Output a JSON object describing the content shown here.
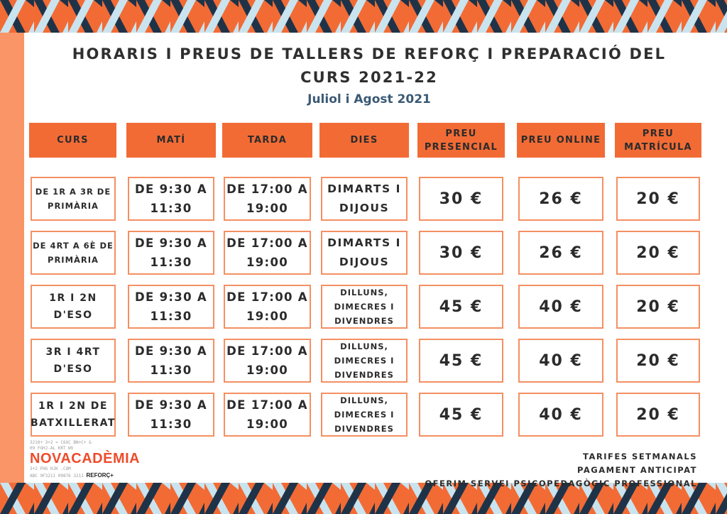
{
  "title_line1": "HORARIS I PREUS DE TALLERS DE REFORÇ I PREPARACIÓ DEL",
  "title_line2": "CURS 2021-22",
  "subtitle": "Juliol i Agost 2021",
  "headers": {
    "curs": "CURS",
    "mati": "MATÍ",
    "tarda": "TARDA",
    "dies": "DIES",
    "preu_presencial_1": "PREU",
    "preu_presencial_2": "PRESENCIAL",
    "preu_online": "PREU ONLINE",
    "preu_matricula_1": "PREU",
    "preu_matricula_2": "MATRÍCULA"
  },
  "rows": [
    {
      "curs_1": "DE 1R A 3R DE",
      "curs_2": "PRIMÀRIA",
      "mati_1": "DE 9:30 A",
      "mati_2": "11:30",
      "tarda_1": "DE 17:00 A",
      "tarda_2": "19:00",
      "dies_1": "DIMARTS I",
      "dies_2": "DIJOUS",
      "dies_3": "",
      "presencial": "30 €",
      "online": "26 €",
      "matricula": "20 €"
    },
    {
      "curs_1": "DE 4RT A 6È DE",
      "curs_2": "PRIMÀRIA",
      "mati_1": "DE 9:30 A",
      "mati_2": "11:30",
      "tarda_1": "DE 17:00 A",
      "tarda_2": "19:00",
      "dies_1": "DIMARTS I",
      "dies_2": "DIJOUS",
      "dies_3": "",
      "presencial": "30 €",
      "online": "26 €",
      "matricula": "20 €"
    },
    {
      "curs_1": "1R I 2N",
      "curs_2": "D'ESO",
      "mati_1": "DE 9:30 A",
      "mati_2": "11:30",
      "tarda_1": "DE 17:00 A",
      "tarda_2": "19:00",
      "dies_1": "DILLUNS,",
      "dies_2": "DIMECRES I",
      "dies_3": "DIVENDRES",
      "presencial": "45 €",
      "online": "40 €",
      "matricula": "20 €"
    },
    {
      "curs_1": "3R I 4RT",
      "curs_2": "D'ESO",
      "mati_1": "DE 9:30 A",
      "mati_2": "11:30",
      "tarda_1": "DE 17:00 A",
      "tarda_2": "19:00",
      "dies_1": "DILLUNS,",
      "dies_2": "DIMECRES I",
      "dies_3": "DIVENDRES",
      "presencial": "45 €",
      "online": "40 €",
      "matricula": "20 €"
    },
    {
      "curs_1": "1R I 2N DE",
      "curs_2": "BATXILLERAT",
      "mati_1": "DE 9:30 A",
      "mati_2": "11:30",
      "tarda_1": "DE 17:00 A",
      "tarda_2": "19:00",
      "dies_1": "DILLUNS,",
      "dies_2": "DIMECRES I",
      "dies_3": "DIVENDRES",
      "presencial": "45 €",
      "online": "40 €",
      "matricula": "20 €"
    }
  ],
  "logo": {
    "top_text_1": "3210+ 3+2 = C6XC BN+C+ &",
    "top_text_2": "09 FGHJ-AL KRT  WV",
    "name": "NOVACADÈMIA",
    "bottom_text_1": "3+2 FHG  HJK .COM",
    "bottom_text_2": "ABC 9F3211 09876 3211",
    "reforc": "REFORÇ+"
  },
  "notes": {
    "line1": "TARIFES SETMANALS",
    "line2": "PAGAMENT ANTICIPAT",
    "line3": "OFERIM SERVEI PSICOPEDAGÒGIC PROFESSIONAL"
  },
  "colors": {
    "accent_orange": "#f26b35",
    "light_orange": "#f99566",
    "navy": "#1f3348",
    "light_blue": "#c9e4ef",
    "subtitle_blue": "#3a5a75"
  }
}
